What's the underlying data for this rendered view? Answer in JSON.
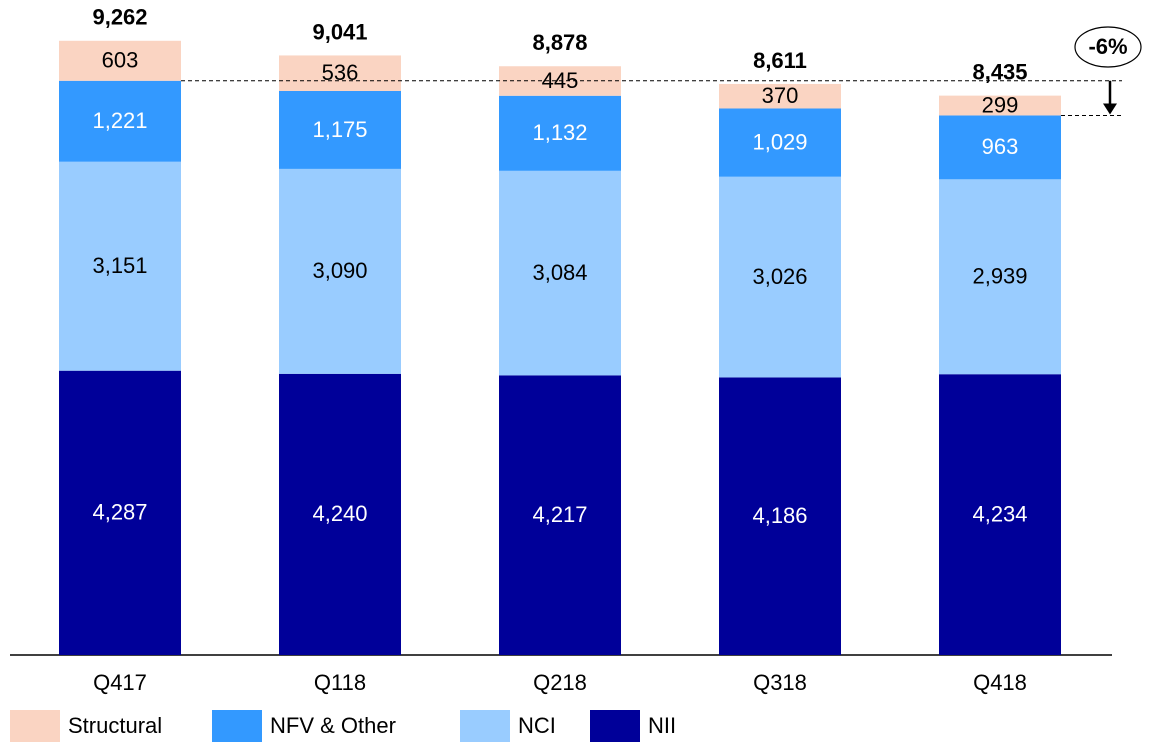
{
  "chart_data": {
    "type": "stacked_bar",
    "categories": [
      "Q417",
      "Q118",
      "Q218",
      "Q318",
      "Q418"
    ],
    "series": [
      {
        "name": "NII",
        "color": "#000099",
        "values": [
          4287,
          4240,
          4217,
          4186,
          4234
        ],
        "value_labels": [
          "4,287",
          "4,240",
          "4,217",
          "4,186",
          "4,234"
        ]
      },
      {
        "name": "NCI",
        "color": "#99ccff",
        "values": [
          3151,
          3090,
          3084,
          3026,
          2939
        ],
        "value_labels": [
          "3,151",
          "3,090",
          "3,084",
          "3,026",
          "2,939"
        ]
      },
      {
        "name": "NFV & Other",
        "color": "#3399ff",
        "values": [
          1221,
          1175,
          1132,
          1029,
          963
        ],
        "value_labels": [
          "1,221",
          "1,175",
          "1,132",
          "1,029",
          "963"
        ]
      },
      {
        "name": "Structural",
        "color": "#fad4c2",
        "values": [
          603,
          536,
          445,
          370,
          299
        ],
        "value_labels": [
          "603",
          "536",
          "445",
          "370",
          "299"
        ]
      }
    ],
    "totals": {
      "values": [
        9262,
        9041,
        8878,
        8611,
        8435
      ],
      "value_labels": [
        "9,262",
        "9,041",
        "8,878",
        "8,611",
        "8,435"
      ]
    },
    "annotation": "-6%",
    "ylim": [
      0,
      9500
    ]
  }
}
